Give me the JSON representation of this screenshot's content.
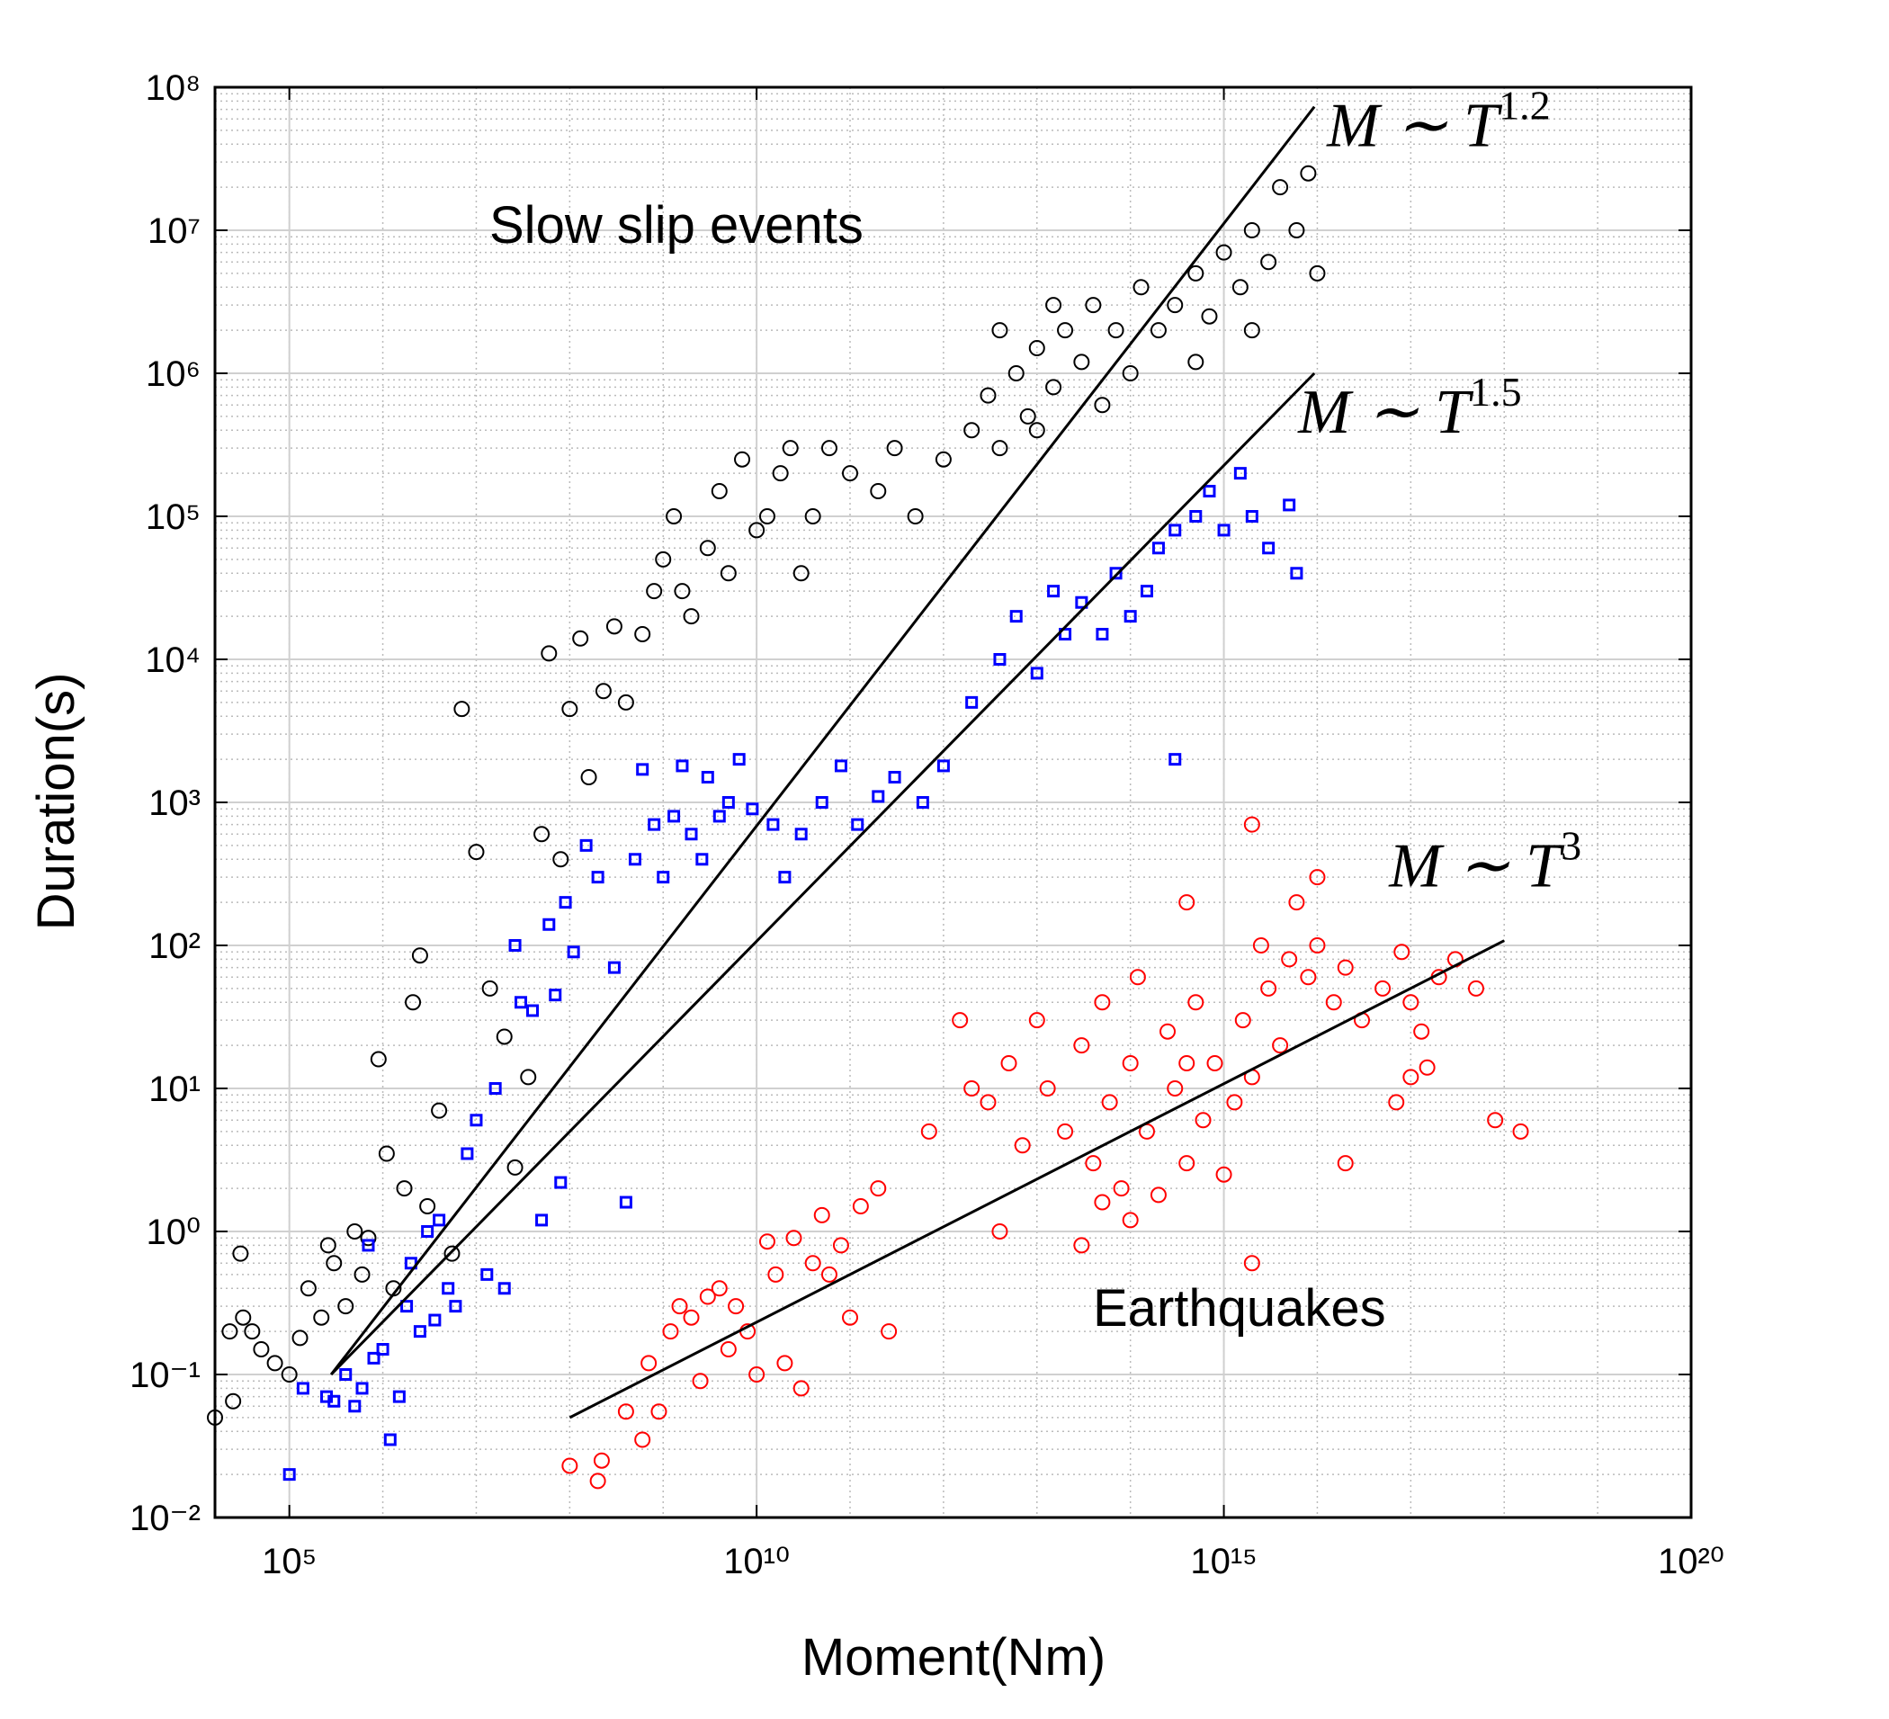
{
  "chart_data": {
    "type": "scatter",
    "x_label": "Moment(Nm)",
    "y_label": "Duration(s)",
    "annotations": [
      "Slow slip events",
      "Earthquakes"
    ],
    "xscale": "log",
    "yscale": "log",
    "xlim": [
      16000,
      1e+20
    ],
    "ylim": [
      0.01,
      100000000.0
    ],
    "xticks": [
      {
        "value": 100000.0,
        "label": "10⁵"
      },
      {
        "value": 10000000000.0,
        "label": "10¹⁰"
      },
      {
        "value": 1000000000000000.0,
        "label": "10¹⁵"
      },
      {
        "value": 1e+20,
        "label": "10²⁰"
      }
    ],
    "yticks": [
      {
        "value": 0.01,
        "label": "10⁻²"
      },
      {
        "value": 0.1,
        "label": "10⁻¹"
      },
      {
        "value": 1,
        "label": "10⁰"
      },
      {
        "value": 10,
        "label": "10¹"
      },
      {
        "value": 100,
        "label": "10²"
      },
      {
        "value": 1000,
        "label": "10³"
      },
      {
        "value": 10000,
        "label": "10⁴"
      },
      {
        "value": 100000,
        "label": "10⁵"
      },
      {
        "value": 1000000,
        "label": "10⁶"
      },
      {
        "value": 10000000,
        "label": "10⁷"
      },
      {
        "value": 100000000,
        "label": "10⁸"
      }
    ],
    "grid": true,
    "minor_grid": true,
    "series": [
      {
        "color": "#000000",
        "marker": "circle",
        "x": [
          16000.0,
          23000.0,
          25000.0,
          30000.0,
          32000.0,
          40000.0,
          50000.0,
          70000.0,
          100000.0,
          130000.0,
          160000.0,
          220000.0,
          260000.0,
          300000.0,
          400000.0,
          500000.0,
          600000.0,
          700000.0,
          900000.0,
          1100000.0,
          1300000.0,
          1700000.0,
          2100000.0,
          2500000.0,
          3000000.0,
          4000000.0,
          5500000.0,
          7000000.0,
          10000000.0,
          14000000.0,
          20000000.0,
          26000000.0,
          36000000.0,
          50000000.0,
          60000000.0,
          80000000.0,
          100000000.0,
          130000000.0,
          160000000.0,
          230000000.0,
          300000000.0,
          400000000.0,
          600000000.0,
          800000000.0,
          1000000000.0,
          1300000000.0,
          1600000000.0,
          2000000000.0,
          3000000000.0,
          4000000000.0,
          5000000000.0,
          7000000000.0,
          10000000000.0,
          13000000000.0,
          18000000000.0,
          23000000000.0,
          30000000000.0,
          40000000000.0,
          60000000000.0,
          100000000000.0,
          200000000000.0,
          300000000000.0,
          500000000000.0,
          1000000000000.0,
          2000000000000.0,
          3000000000000.0,
          4000000000000.0,
          6000000000000.0,
          8000000000000.0,
          10000000000000.0,
          15000000000000.0,
          20000000000000.0,
          30000000000000.0,
          40000000000000.0,
          50000000000000.0,
          70000000000000.0,
          100000000000000.0,
          130000000000000.0,
          200000000000000.0,
          300000000000000.0,
          500000000000000.0,
          700000000000000.0,
          1000000000000000.0,
          1500000000000000.0,
          2000000000000000.0,
          3000000000000000.0,
          4000000000000000.0,
          6000000000000000.0,
          8000000000000000.0,
          1e+16,
          500000000000000.0,
          2000000000000000.0,
          10000000000000.0,
          4000000000000.0,
          15000000000000.0
        ],
        "values": [
          0.05,
          0.2,
          0.065,
          0.7,
          0.25,
          0.2,
          0.15,
          0.12,
          0.1,
          0.18,
          0.4,
          0.25,
          0.8,
          0.6,
          0.3,
          1,
          0.5,
          0.9,
          16,
          3.5,
          0.4,
          2,
          40,
          85,
          1.5,
          7,
          0.7,
          4500,
          450,
          50,
          23,
          2.8,
          12,
          600,
          11000,
          400,
          4500,
          14000,
          1500,
          6000,
          17000,
          5000,
          15000,
          30000,
          50000,
          100000,
          30000,
          20000,
          60000,
          150000,
          40000,
          250000,
          80000,
          100000,
          200000,
          300000,
          40000,
          100000,
          300000,
          200000.0,
          150000.0,
          300000.0,
          100000.0,
          250000.0,
          400000.0,
          700000.0,
          300000.0,
          1000000.0,
          500000.0,
          1500000.0,
          800000.0,
          2000000.0,
          1200000.0,
          3000000.0,
          600000.0,
          2000000.0,
          1000000.0,
          4000000.0,
          2000000.0,
          3000000.0,
          5000000.0,
          2500000.0,
          7000000.0,
          4000000.0,
          10000000.0,
          6000000.0,
          20000000.0,
          10000000.0,
          25000000.0,
          5000000.0,
          1200000.0,
          2000000.0,
          400000.0,
          2000000.0,
          3000000.0
        ]
      },
      {
        "color": "#0000ff",
        "marker": "square",
        "x": [
          100000.0,
          140000.0,
          250000.0,
          300000.0,
          400000.0,
          500000.0,
          600000.0,
          700000.0,
          800000.0,
          1000000.0,
          1200000.0,
          1500000.0,
          1800000.0,
          2000000.0,
          2500000.0,
          3000000.0,
          3600000.0,
          4000000.0,
          5000000.0,
          6000000.0,
          8000000.0,
          10000000.0,
          13000000.0,
          16000000.0,
          20000000.0,
          26000000.0,
          30000000.0,
          40000000.0,
          50000000.0,
          60000000.0,
          70000000.0,
          80000000.0,
          90000000.0,
          110000000.0,
          150000000.0,
          200000000.0,
          300000000.0,
          400000000.0,
          500000000.0,
          600000000.0,
          800000000.0,
          1000000000.0,
          1300000000.0,
          1600000000.0,
          2000000000.0,
          2600000000.0,
          3000000000.0,
          4000000000.0,
          5000000000.0,
          6500000000.0,
          9000000000.0,
          15000000000.0,
          20000000000.0,
          30000000000.0,
          50000000000.0,
          80000000000.0,
          120000000000.0,
          200000000000.0,
          300000000000.0,
          600000000000.0,
          1000000000000.0,
          2000000000000.0,
          4000000000000.0,
          6000000000000.0,
          10000000000000.0,
          15000000000000.0,
          20000000000000.0,
          30000000000000.0,
          50000000000000.0,
          70000000000000.0,
          100000000000000.0,
          150000000000000.0,
          200000000000000.0,
          300000000000000.0,
          500000000000000.0,
          700000000000000.0,
          1000000000000000.0,
          1500000000000000.0,
          2000000000000000.0,
          3000000000000000.0,
          5000000000000000.0,
          300000000000000.0,
          6000000000000000.0
        ],
        "values": [
          0.02,
          0.08,
          0.07,
          0.065,
          0.1,
          0.06,
          0.08,
          0.8,
          0.13,
          0.15,
          0.035,
          0.07,
          0.3,
          0.6,
          0.2,
          1,
          0.24,
          1.2,
          0.4,
          0.3,
          3.5,
          6,
          0.5,
          10,
          0.4,
          100,
          40,
          35,
          1.2,
          140,
          45,
          2.2,
          200,
          90,
          500,
          300,
          70,
          1.6,
          400,
          1700,
          700,
          300,
          800,
          1800,
          600,
          400,
          1500,
          800,
          1000,
          2000,
          900,
          700,
          300,
          600,
          1000,
          1800,
          700,
          1100,
          1500,
          1000,
          1800,
          5000,
          10000.0,
          20000.0,
          8000,
          30000.0,
          15000.0,
          25000.0,
          15000.0,
          40000.0,
          20000.0,
          30000.0,
          60000.0,
          80000.0,
          100000.0,
          150000.0,
          80000.0,
          200000.0,
          100000.0,
          60000.0,
          120000.0,
          2000,
          40000.0
        ]
      },
      {
        "color": "#ff0000",
        "marker": "circle",
        "x": [
          100000000.0,
          200000000.0,
          220000000.0,
          400000000.0,
          600000000.0,
          700000000.0,
          900000000.0,
          1200000000.0,
          1500000000.0,
          2000000000.0,
          2500000000.0,
          3000000000.0,
          4000000000.0,
          5000000000.0,
          6000000000.0,
          8000000000.0,
          10000000000.0,
          13000000000.0,
          16000000000.0,
          20000000000.0,
          25000000000.0,
          30000000000.0,
          40000000000.0,
          50000000000.0,
          60000000000.0,
          80000000000.0,
          100000000000.0,
          130000000000.0,
          200000000000.0,
          260000000000.0,
          700000000000.0,
          1500000000000.0,
          2000000000000.0,
          3000000000000.0,
          4000000000000.0,
          5000000000000.0,
          7000000000000.0,
          10000000000000.0,
          13000000000000.0,
          20000000000000.0,
          30000000000000.0,
          30000000000000.0,
          40000000000000.0,
          50000000000000.0,
          50000000000000.0,
          60000000000000.0,
          80000000000000.0,
          100000000000000.0,
          100000000000000.0,
          120000000000000.0,
          150000000000000.0,
          200000000000000.0,
          250000000000000.0,
          300000000000000.0,
          400000000000000.0,
          400000000000000.0,
          400000000000000.0,
          500000000000000.0,
          600000000000000.0,
          800000000000000.0,
          1000000000000000.0,
          1300000000000000.0,
          1600000000000000.0,
          2000000000000000.0,
          2000000000000000.0,
          2000000000000000.0,
          2500000000000000.0,
          3000000000000000.0,
          4000000000000000.0,
          5000000000000000.0,
          6000000000000000.0,
          8000000000000000.0,
          1e+16,
          1e+16,
          1.5e+16,
          2e+16,
          2e+16,
          3e+16,
          5e+16,
          7e+16,
          8e+16,
          1e+17,
          1e+17,
          1.3e+17,
          1.5e+17,
          2e+17,
          3e+17,
          5e+17,
          8e+17,
          1.5e+18
        ],
        "values": [
          0.023,
          0.018,
          0.025,
          0.055,
          0.035,
          0.12,
          0.055,
          0.2,
          0.3,
          0.25,
          0.09,
          0.35,
          0.4,
          0.15,
          0.3,
          0.2,
          0.1,
          0.85,
          0.5,
          0.12,
          0.9,
          0.08,
          0.6,
          1.3,
          0.5,
          0.8,
          0.25,
          1.5,
          2,
          0.2,
          5,
          30,
          10,
          8,
          1,
          15,
          4,
          30,
          10,
          5,
          20,
          0.8,
          3,
          40,
          1.6,
          8,
          2,
          15,
          1.2,
          60,
          5,
          1.8,
          25,
          10,
          3,
          15,
          200,
          40,
          6,
          15,
          2.5,
          8,
          30,
          12,
          0.6,
          700,
          100,
          50,
          20,
          80,
          200,
          60,
          100,
          300,
          40,
          70,
          3,
          30,
          50,
          8,
          90,
          40,
          12,
          25,
          14,
          60,
          80,
          50,
          6,
          5
        ]
      }
    ],
    "fits": [
      {
        "color": "#000000",
        "label": "M ∼ T",
        "exponent": "1.2",
        "x": [
          280000.0,
          9300000000000000.0
        ],
        "values": [
          0.1,
          73000000.0
        ]
      },
      {
        "color": "#000000",
        "label": "M ∼ T",
        "exponent": "1.5",
        "x": [
          280000.0,
          9300000000000000.0
        ],
        "values": [
          0.1,
          1000000.0
        ]
      },
      {
        "color": "#000000",
        "label": "M ∼ T",
        "exponent": "3",
        "x": [
          100000000.0,
          1e+18
        ],
        "values": [
          0.05,
          108
        ]
      }
    ]
  }
}
